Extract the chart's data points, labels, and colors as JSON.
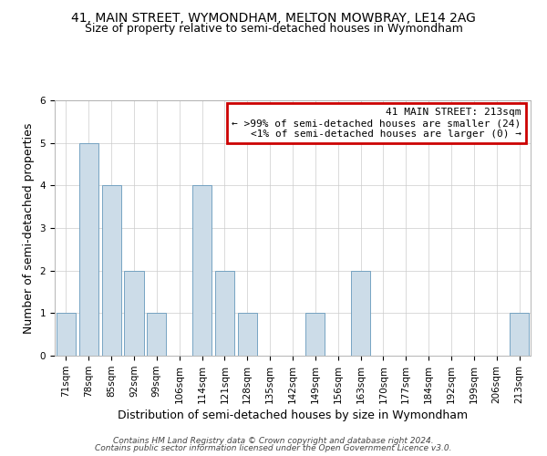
{
  "title": "41, MAIN STREET, WYMONDHAM, MELTON MOWBRAY, LE14 2AG",
  "subtitle": "Size of property relative to semi-detached houses in Wymondham",
  "xlabel": "Distribution of semi-detached houses by size in Wymondham",
  "ylabel": "Number of semi-detached properties",
  "bin_labels": [
    "71sqm",
    "78sqm",
    "85sqm",
    "92sqm",
    "99sqm",
    "106sqm",
    "114sqm",
    "121sqm",
    "128sqm",
    "135sqm",
    "142sqm",
    "149sqm",
    "156sqm",
    "163sqm",
    "170sqm",
    "177sqm",
    "184sqm",
    "192sqm",
    "199sqm",
    "206sqm",
    "213sqm"
  ],
  "bar_heights": [
    1,
    5,
    4,
    2,
    1,
    0,
    4,
    2,
    1,
    0,
    0,
    1,
    0,
    2,
    0,
    0,
    0,
    0,
    0,
    0,
    1
  ],
  "bar_color": "#ccdce8",
  "bar_edge_color": "#6699bb",
  "ylim": [
    0,
    6
  ],
  "yticks": [
    0,
    1,
    2,
    3,
    4,
    5,
    6
  ],
  "annotation_title": "41 MAIN STREET: 213sqm",
  "annotation_line1": "← >99% of semi-detached houses are smaller (24)",
  "annotation_line2": "<1% of semi-detached houses are larger (0) →",
  "annotation_box_color": "#ffffff",
  "annotation_border_color": "#cc0000",
  "footnote1": "Contains HM Land Registry data © Crown copyright and database right 2024.",
  "footnote2": "Contains public sector information licensed under the Open Government Licence v3.0.",
  "title_fontsize": 10,
  "subtitle_fontsize": 9,
  "axis_label_fontsize": 9,
  "tick_fontsize": 7.5,
  "annotation_fontsize": 8,
  "footnote_fontsize": 6.5
}
